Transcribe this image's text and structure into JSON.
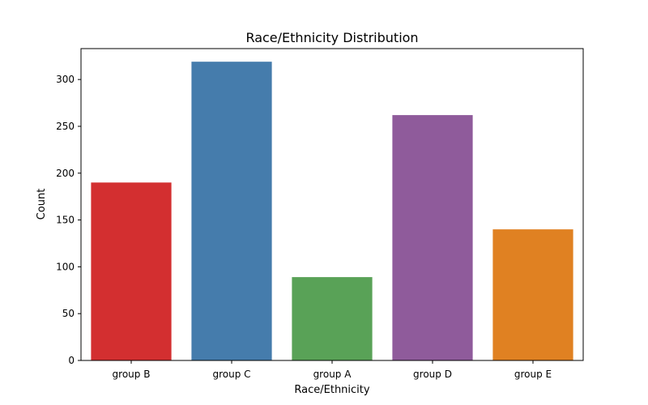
{
  "chart_data": {
    "type": "bar",
    "title": "Race/Ethnicity Distribution",
    "xlabel": "Race/Ethnicity",
    "ylabel": "Count",
    "categories": [
      "group B",
      "group C",
      "group A",
      "group D",
      "group E"
    ],
    "values": [
      190,
      319,
      89,
      262,
      140
    ],
    "colors": [
      "#d32f30",
      "#457cac",
      "#59a257",
      "#8f5b9b",
      "#e08122"
    ],
    "ylim": [
      0,
      333
    ],
    "yticks": [
      0,
      50,
      100,
      150,
      200,
      250,
      300
    ],
    "grid": false,
    "legend": "none"
  }
}
